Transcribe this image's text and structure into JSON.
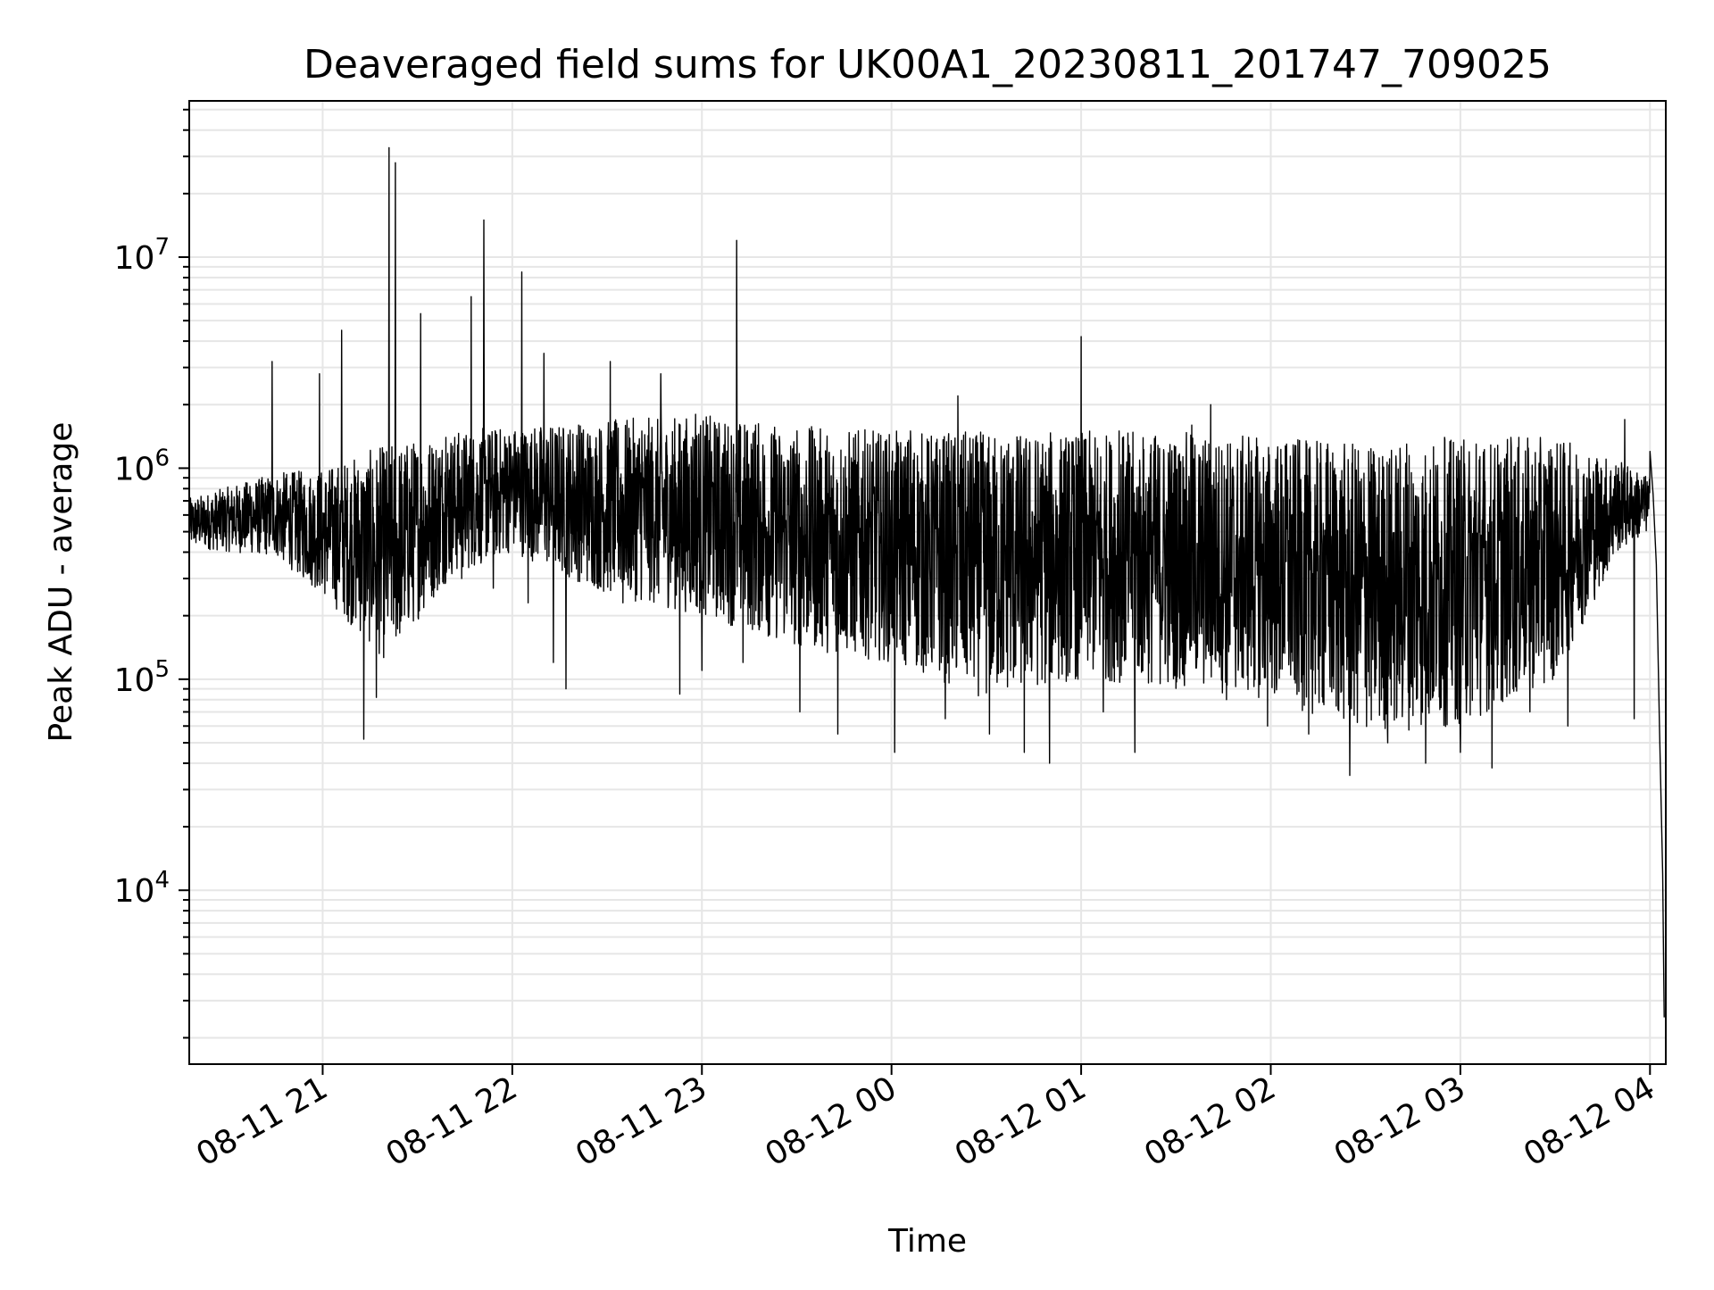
{
  "chart_data": {
    "type": "line",
    "title": "Deaveraged field sums for UK00A1_20230811_201747_709025",
    "xlabel": "Time",
    "ylabel": "Peak ADU - average",
    "y_scale": "log",
    "ylim": [
      1500,
      55000000
    ],
    "xlim": [
      "2023-08-11 20:17:47",
      "2023-08-12 04:05:00"
    ],
    "grid": true,
    "legend": "none",
    "line_color": "#000000",
    "grid_color": "#e6e6e6",
    "x_ticks": [
      {
        "t": "2023-08-11 21:00",
        "label": "08-11 21"
      },
      {
        "t": "2023-08-11 22:00",
        "label": "08-11 22"
      },
      {
        "t": "2023-08-11 23:00",
        "label": "08-11 23"
      },
      {
        "t": "2023-08-12 00:00",
        "label": "08-12 00"
      },
      {
        "t": "2023-08-12 01:00",
        "label": "08-12 01"
      },
      {
        "t": "2023-08-12 02:00",
        "label": "08-12 02"
      },
      {
        "t": "2023-08-12 03:00",
        "label": "08-12 03"
      },
      {
        "t": "2023-08-12 04:00",
        "label": "08-12 04"
      }
    ],
    "y_ticks": [
      {
        "value": 10000,
        "base": "10",
        "exp": "4"
      },
      {
        "value": 100000,
        "base": "10",
        "exp": "5"
      },
      {
        "value": 1000000,
        "base": "10",
        "exp": "6"
      },
      {
        "value": 10000000,
        "base": "10",
        "exp": "7"
      }
    ],
    "series": [
      {
        "points": [
          [
            "2023-08-11 20:17:47",
            500000
          ],
          [
            "2023-08-11 20:22",
            520000
          ],
          [
            "2023-08-11 20:27",
            650000
          ],
          [
            "2023-08-11 20:32",
            730000
          ],
          [
            "2023-08-11 20:37",
            820000
          ],
          [
            "2023-08-11 20:42",
            640000
          ],
          [
            "2023-08-11 20:44",
            3200000
          ],
          [
            "2023-08-11 20:46",
            520000
          ],
          [
            "2023-08-11 20:50",
            450000
          ],
          [
            "2023-08-11 20:55",
            380000
          ],
          [
            "2023-08-11 20:59",
            2800000
          ],
          [
            "2023-08-11 21:00",
            300000
          ],
          [
            "2023-08-11 21:03",
            700000
          ],
          [
            "2023-08-11 21:06",
            4500000
          ],
          [
            "2023-08-11 21:08",
            250000
          ],
          [
            "2023-08-11 21:11",
            850000
          ],
          [
            "2023-08-11 21:13",
            52000
          ],
          [
            "2023-08-11 21:15",
            700000
          ],
          [
            "2023-08-11 21:17",
            82000
          ],
          [
            "2023-08-11 21:19",
            900000
          ],
          [
            "2023-08-11 21:21",
            33000000
          ],
          [
            "2023-08-11 21:22",
            400000
          ],
          [
            "2023-08-11 21:23",
            28000000
          ],
          [
            "2023-08-11 21:25",
            200000
          ],
          [
            "2023-08-11 21:29",
            1200000
          ],
          [
            "2023-08-11 21:31",
            5400000
          ],
          [
            "2023-08-11 21:34",
            450000
          ],
          [
            "2023-08-11 21:39",
            1400000
          ],
          [
            "2023-08-11 21:44",
            300000
          ],
          [
            "2023-08-11 21:47",
            6500000
          ],
          [
            "2023-08-11 21:49",
            700000
          ],
          [
            "2023-08-11 21:51",
            15000000
          ],
          [
            "2023-08-11 21:54",
            270000
          ],
          [
            "2023-08-11 21:58",
            1300000
          ],
          [
            "2023-08-11 22:03",
            8500000
          ],
          [
            "2023-08-11 22:05",
            230000
          ],
          [
            "2023-08-11 22:10",
            3500000
          ],
          [
            "2023-08-11 22:13",
            120000
          ],
          [
            "2023-08-11 22:17",
            90000
          ],
          [
            "2023-08-11 22:21",
            1600000
          ],
          [
            "2023-08-11 22:26",
            300000
          ],
          [
            "2023-08-11 22:31",
            3200000
          ],
          [
            "2023-08-11 22:35",
            230000
          ],
          [
            "2023-08-11 22:41",
            1500000
          ],
          [
            "2023-08-11 22:47",
            2800000
          ],
          [
            "2023-08-11 22:50",
            500000
          ],
          [
            "2023-08-11 22:53",
            85000
          ],
          [
            "2023-08-11 22:58",
            1800000
          ],
          [
            "2023-08-11 23:00",
            110000
          ],
          [
            "2023-08-11 23:05",
            1400000
          ],
          [
            "2023-08-11 23:09",
            400000
          ],
          [
            "2023-08-11 23:11",
            12000000
          ],
          [
            "2023-08-11 23:13",
            120000
          ],
          [
            "2023-08-11 23:17",
            1600000
          ],
          [
            "2023-08-11 23:25",
            450000
          ],
          [
            "2023-08-11 23:31",
            70000
          ],
          [
            "2023-08-11 23:35",
            1500000
          ],
          [
            "2023-08-11 23:43",
            55000
          ],
          [
            "2023-08-11 23:51",
            1200000
          ],
          [
            "2023-08-11 23:59",
            130000
          ],
          [
            "2023-08-12 00:01",
            45000
          ],
          [
            "2023-08-12 00:06",
            1500000
          ],
          [
            "2023-08-12 00:11",
            600000
          ],
          [
            "2023-08-12 00:17",
            65000
          ],
          [
            "2023-08-12 00:21",
            2200000
          ],
          [
            "2023-08-12 00:27",
            300000
          ],
          [
            "2023-08-12 00:31",
            55000
          ],
          [
            "2023-08-12 00:37",
            1300000
          ],
          [
            "2023-08-12 00:42",
            45000
          ],
          [
            "2023-08-12 00:47",
            900000
          ],
          [
            "2023-08-12 00:50",
            40000
          ],
          [
            "2023-08-12 00:53",
            600000
          ],
          [
            "2023-08-12 00:59",
            100000
          ],
          [
            "2023-08-12 01:00",
            4200000
          ],
          [
            "2023-08-12 01:02",
            600000
          ],
          [
            "2023-08-12 01:07",
            70000
          ],
          [
            "2023-08-12 01:12",
            1500000
          ],
          [
            "2023-08-12 01:17",
            45000
          ],
          [
            "2023-08-12 01:23",
            1200000
          ],
          [
            "2023-08-12 01:29",
            150000
          ],
          [
            "2023-08-12 01:35",
            1600000
          ],
          [
            "2023-08-12 01:41",
            2000000
          ],
          [
            "2023-08-12 01:46",
            80000
          ],
          [
            "2023-08-12 01:53",
            1400000
          ],
          [
            "2023-08-12 01:59",
            60000
          ],
          [
            "2023-08-12 02:05",
            1300000
          ],
          [
            "2023-08-12 02:12",
            55000
          ],
          [
            "2023-08-12 02:18",
            1300000
          ],
          [
            "2023-08-12 02:25",
            35000
          ],
          [
            "2023-08-12 02:31",
            1200000
          ],
          [
            "2023-08-12 02:37",
            50000
          ],
          [
            "2023-08-12 02:43",
            1300000
          ],
          [
            "2023-08-12 02:49",
            40000
          ],
          [
            "2023-08-12 02:55",
            1400000
          ],
          [
            "2023-08-12 03:00",
            45000
          ],
          [
            "2023-08-12 03:05",
            1300000
          ],
          [
            "2023-08-12 03:10",
            38000
          ],
          [
            "2023-08-12 03:16",
            1400000
          ],
          [
            "2023-08-12 03:22",
            70000
          ],
          [
            "2023-08-12 03:28",
            1200000
          ],
          [
            "2023-08-12 03:34",
            60000
          ],
          [
            "2023-08-12 03:40",
            900000
          ],
          [
            "2023-08-12 03:46",
            350000
          ],
          [
            "2023-08-12 03:52",
            1700000
          ],
          [
            "2023-08-12 03:55",
            65000
          ],
          [
            "2023-08-12 03:58",
            800000
          ],
          [
            "2023-08-12 04:00",
            1200000
          ],
          [
            "2023-08-12 04:01",
            750000
          ],
          [
            "2023-08-12 04:02",
            350000
          ],
          [
            "2023-08-12 04:03",
            60000
          ],
          [
            "2023-08-12 04:04",
            12000
          ],
          [
            "2023-08-12 04:04:30",
            2500
          ]
        ],
        "band": [
          [
            "2023-08-11 20:17:47",
            420000,
            720000
          ],
          [
            "2023-08-11 20:45",
            380000,
            950000
          ],
          [
            "2023-08-11 21:00",
            250000,
            1000000
          ],
          [
            "2023-08-11 21:20",
            120000,
            1300000
          ],
          [
            "2023-08-11 21:40",
            300000,
            1500000
          ],
          [
            "2023-08-11 22:00",
            400000,
            1600000
          ],
          [
            "2023-08-11 22:30",
            250000,
            1700000
          ],
          [
            "2023-08-11 23:00",
            200000,
            1800000
          ],
          [
            "2023-08-11 23:30",
            140000,
            1600000
          ],
          [
            "2023-08-12 00:00",
            120000,
            1500000
          ],
          [
            "2023-08-12 00:30",
            80000,
            1500000
          ],
          [
            "2023-08-12 01:00",
            100000,
            1500000
          ],
          [
            "2023-08-12 01:30",
            90000,
            1500000
          ],
          [
            "2023-08-12 02:00",
            80000,
            1400000
          ],
          [
            "2023-08-12 02:30",
            55000,
            1300000
          ],
          [
            "2023-08-12 03:00",
            60000,
            1400000
          ],
          [
            "2023-08-12 03:30",
            100000,
            1400000
          ],
          [
            "2023-08-12 03:50",
            400000,
            1100000
          ],
          [
            "2023-08-12 04:00",
            500000,
            900000
          ]
        ]
      }
    ]
  }
}
